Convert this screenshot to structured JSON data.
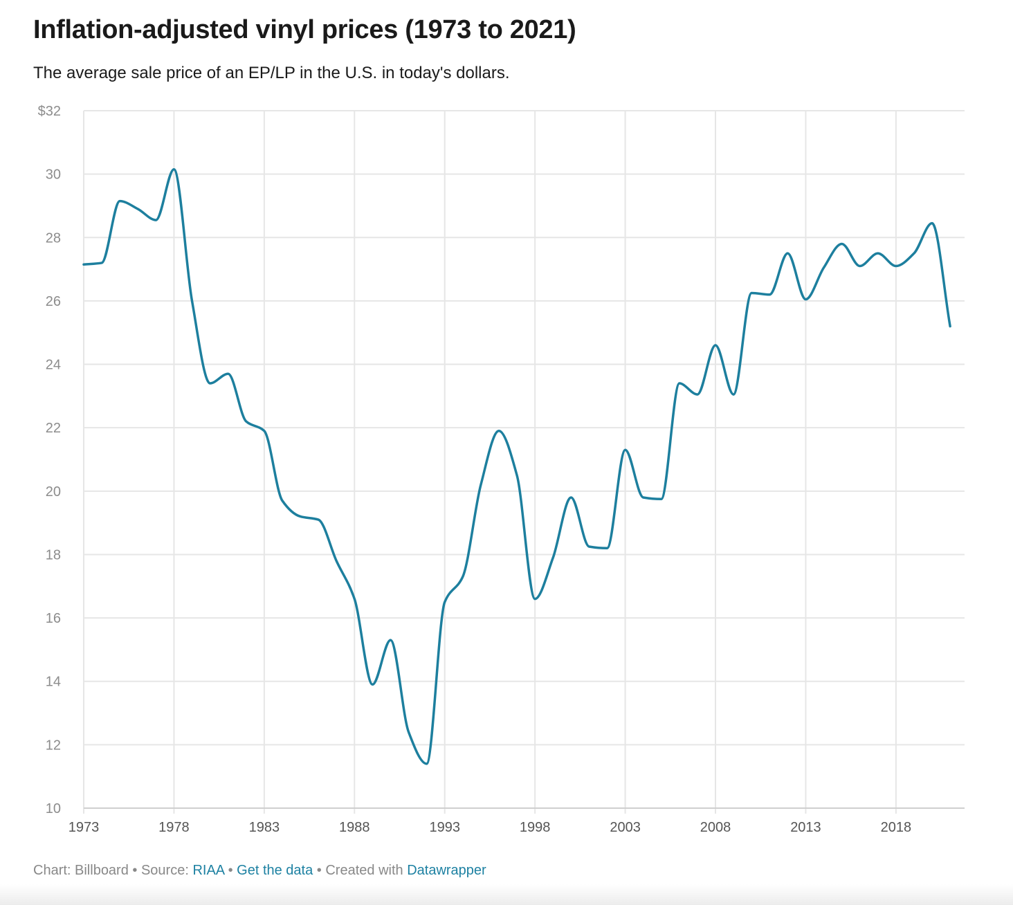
{
  "header": {
    "title": "Inflation-adjusted vinyl prices (1973 to 2021)",
    "subtitle": "The average sale price of an EP/LP in the U.S. in today's dollars."
  },
  "footer": {
    "chart_label": "Chart: Billboard",
    "separator": " • ",
    "source_label": "Source: ",
    "source_link": "RIAA",
    "data_link": "Get the data",
    "created_label": "Created with ",
    "tool_link": "Datawrapper"
  },
  "colors": {
    "line": "#1d7f9e",
    "grid": "#e6e6e6",
    "tick_text": "#8c8c8c",
    "x_tick_text": "#555555",
    "link": "#1d81a2"
  },
  "chart_data": {
    "type": "line",
    "title": "Inflation-adjusted vinyl prices (1973 to 2021)",
    "subtitle": "The average sale price of an EP/LP in the U.S. in today's dollars.",
    "xlabel": "",
    "ylabel": "",
    "xlim": [
      1973,
      2021.8
    ],
    "ylim": [
      10,
      32
    ],
    "y_ticks": [
      {
        "value": 32,
        "label": "$32"
      },
      {
        "value": 30,
        "label": "30"
      },
      {
        "value": 28,
        "label": "28"
      },
      {
        "value": 26,
        "label": "26"
      },
      {
        "value": 24,
        "label": "24"
      },
      {
        "value": 22,
        "label": "22"
      },
      {
        "value": 20,
        "label": "20"
      },
      {
        "value": 18,
        "label": "18"
      },
      {
        "value": 16,
        "label": "16"
      },
      {
        "value": 14,
        "label": "14"
      },
      {
        "value": 12,
        "label": "12"
      },
      {
        "value": 10,
        "label": "10"
      }
    ],
    "x_ticks": [
      {
        "value": 1973,
        "label": "1973"
      },
      {
        "value": 1978,
        "label": "1978"
      },
      {
        "value": 1983,
        "label": "1983"
      },
      {
        "value": 1988,
        "label": "1988"
      },
      {
        "value": 1993,
        "label": "1993"
      },
      {
        "value": 1998,
        "label": "1998"
      },
      {
        "value": 2003,
        "label": "2003"
      },
      {
        "value": 2008,
        "label": "2008"
      },
      {
        "value": 2013,
        "label": "2013"
      },
      {
        "value": 2018,
        "label": "2018"
      }
    ],
    "grid": true,
    "series": [
      {
        "x": [
          1973,
          1974,
          1975,
          1976,
          1977,
          1978,
          1979,
          1980,
          1981,
          1982,
          1983,
          1984,
          1985,
          1986,
          1987,
          1988,
          1989,
          1990,
          1991,
          1992,
          1993,
          1994,
          1995,
          1996,
          1997,
          1998,
          1999,
          2000,
          2001,
          2002,
          2003,
          2004,
          2005,
          2006,
          2007,
          2008,
          2009,
          2010,
          2011,
          2012,
          2013,
          2014,
          2015,
          2016,
          2017,
          2018,
          2019,
          2020,
          2021
        ],
        "values": [
          27.15,
          27.2,
          29.15,
          28.9,
          28.55,
          30.15,
          26.0,
          23.4,
          23.7,
          22.2,
          21.9,
          19.7,
          19.2,
          19.1,
          17.8,
          16.6,
          13.9,
          15.3,
          12.4,
          11.4,
          16.5,
          17.3,
          20.2,
          21.9,
          20.5,
          16.6,
          17.9,
          19.8,
          18.25,
          18.2,
          21.3,
          19.8,
          19.75,
          23.4,
          23.05,
          24.6,
          23.05,
          26.25,
          26.2,
          27.5,
          26.05,
          27.05,
          27.8,
          27.1,
          27.5,
          27.1,
          27.5,
          28.45,
          25.2
        ]
      }
    ]
  }
}
